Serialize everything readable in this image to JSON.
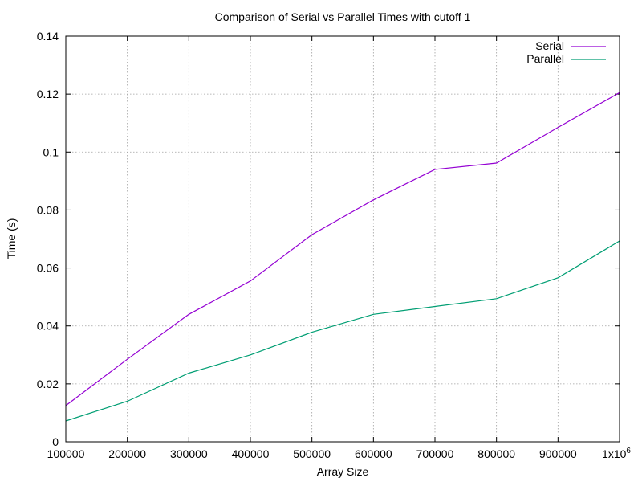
{
  "chart_data": {
    "type": "line",
    "title": "Comparison of Serial vs Parallel Times with cutoff 1",
    "xlabel": "Array Size",
    "ylabel": "Time (s)",
    "x": [
      100000,
      200000,
      300000,
      400000,
      500000,
      600000,
      700000,
      800000,
      900000,
      1000000
    ],
    "x_tick_labels": [
      "100000",
      "200000",
      "300000",
      "400000",
      "500000",
      "600000",
      "700000",
      "800000",
      "900000",
      "1x10"
    ],
    "x_tick_last_exponent": "6",
    "y_tick_labels": [
      "0",
      "0.02",
      "0.04",
      "0.06",
      "0.08",
      "0.1",
      "0.12",
      "0.14"
    ],
    "y_ticks": [
      0,
      0.02,
      0.04,
      0.06,
      0.08,
      0.1,
      0.12,
      0.14
    ],
    "xlim": [
      100000,
      1000000
    ],
    "ylim": [
      0,
      0.14
    ],
    "grid": true,
    "legend_position": "top-right",
    "series": [
      {
        "name": "Serial",
        "color": "#9400d3",
        "values": [
          0.0125,
          0.0285,
          0.044,
          0.0555,
          0.0715,
          0.0835,
          0.094,
          0.0962,
          0.1085,
          0.1205
        ]
      },
      {
        "name": "Parallel",
        "color": "#009e73",
        "values": [
          0.0072,
          0.014,
          0.0237,
          0.03,
          0.0378,
          0.044,
          0.0467,
          0.0494,
          0.0566,
          0.0693
        ]
      }
    ]
  }
}
